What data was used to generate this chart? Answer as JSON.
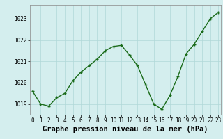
{
  "x": [
    0,
    1,
    2,
    3,
    4,
    5,
    6,
    7,
    8,
    9,
    10,
    11,
    12,
    13,
    14,
    15,
    16,
    17,
    18,
    19,
    20,
    21,
    22,
    23
  ],
  "y": [
    1019.6,
    1019.0,
    1018.9,
    1019.3,
    1019.5,
    1020.1,
    1020.5,
    1020.8,
    1021.1,
    1021.5,
    1021.7,
    1021.75,
    1021.3,
    1020.8,
    1019.9,
    1019.0,
    1018.75,
    1019.4,
    1020.3,
    1021.35,
    1021.8,
    1022.4,
    1023.0,
    1023.3
  ],
  "line_color": "#1a6b1a",
  "marker": "+",
  "marker_size": 3.5,
  "marker_linewidth": 1.0,
  "line_width": 1.0,
  "bg_color": "#d4eeee",
  "grid_color": "#b0d8d8",
  "xlabel": "Graphe pression niveau de la mer (hPa)",
  "xlabel_fontsize": 7.5,
  "tick_fontsize": 5.5,
  "yticks": [
    1019,
    1020,
    1021,
    1022,
    1023
  ],
  "xticks": [
    0,
    1,
    2,
    3,
    4,
    5,
    6,
    7,
    8,
    9,
    10,
    11,
    12,
    13,
    14,
    15,
    16,
    17,
    18,
    19,
    20,
    21,
    22,
    23
  ],
  "xlim": [
    -0.3,
    23.3
  ],
  "ylim": [
    1018.5,
    1023.65
  ]
}
